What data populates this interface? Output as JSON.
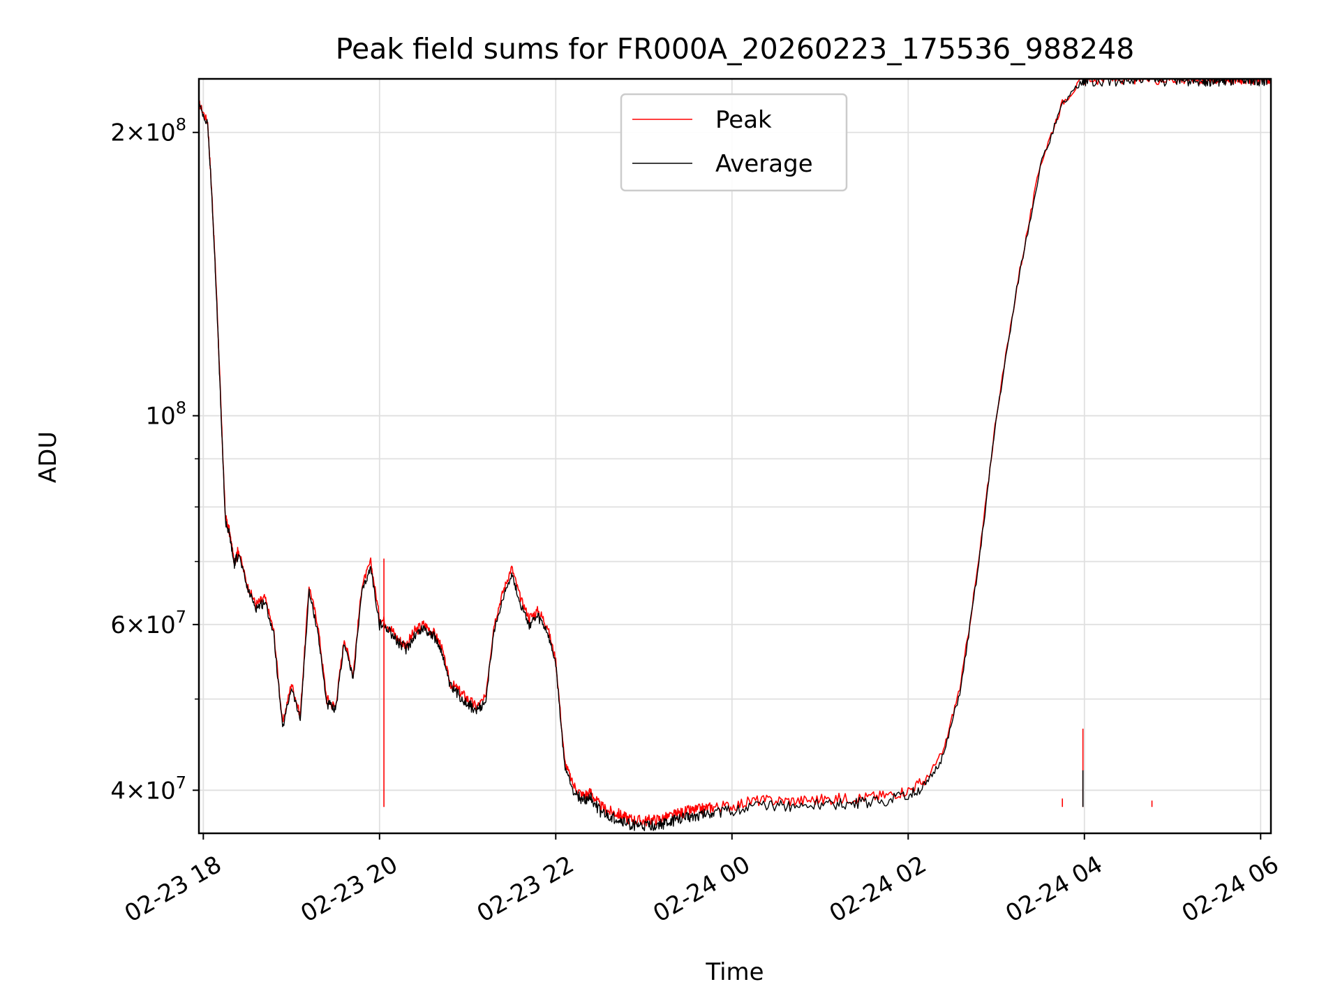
{
  "chart_data": {
    "type": "line",
    "title": "Peak field sums for FR000A_20260223_175536_988248",
    "xlabel": "Time",
    "ylabel": "ADU",
    "yscale": "log",
    "xlim": [
      "2026-02-23 17:57",
      "2026-02-24 06:07"
    ],
    "ylim": [
      36000000,
      228000000
    ],
    "x_ticks": [
      {
        "value": "2026-02-23 18:00",
        "label": "02-23 18"
      },
      {
        "value": "2026-02-23 20:00",
        "label": "02-23 20"
      },
      {
        "value": "2026-02-23 22:00",
        "label": "02-23 22"
      },
      {
        "value": "2026-02-24 00:00",
        "label": "02-24 00"
      },
      {
        "value": "2026-02-24 02:00",
        "label": "02-24 02"
      },
      {
        "value": "2026-02-24 04:00",
        "label": "02-24 04"
      },
      {
        "value": "2026-02-24 06:00",
        "label": "02-24 06"
      }
    ],
    "y_ticks": [
      {
        "value": 40000000,
        "label_mantissa": "4",
        "label_exp": "7"
      },
      {
        "value": 60000000,
        "label_mantissa": "6",
        "label_exp": "7"
      },
      {
        "value": 100000000,
        "label_mantissa": "",
        "label_exp": "8"
      },
      {
        "value": 200000000,
        "label_mantissa": "2",
        "label_exp": "8"
      }
    ],
    "y_minor_ticks": [
      50000000,
      70000000,
      80000000,
      90000000
    ],
    "grid": true,
    "legend_position": "top-center",
    "series": [
      {
        "name": "Peak",
        "color": "#ff0000",
        "x": [
          "2026-02-23 17:57",
          "2026-02-23 18:03",
          "2026-02-23 18:06",
          "2026-02-23 18:09",
          "2026-02-23 18:12",
          "2026-02-23 18:15",
          "2026-02-23 18:18",
          "2026-02-23 18:21",
          "2026-02-23 18:24",
          "2026-02-23 18:30",
          "2026-02-23 18:36",
          "2026-02-23 18:42",
          "2026-02-23 18:48",
          "2026-02-23 18:54",
          "2026-02-23 19:00",
          "2026-02-23 19:06",
          "2026-02-23 19:12",
          "2026-02-23 19:18",
          "2026-02-23 19:24",
          "2026-02-23 19:30",
          "2026-02-23 19:36",
          "2026-02-23 19:42",
          "2026-02-23 19:48",
          "2026-02-23 19:54",
          "2026-02-23 20:00",
          "2026-02-23 20:06",
          "2026-02-23 20:12",
          "2026-02-23 20:18",
          "2026-02-23 20:24",
          "2026-02-23 20:30",
          "2026-02-23 20:36",
          "2026-02-23 20:42",
          "2026-02-23 20:48",
          "2026-02-23 20:54",
          "2026-02-23 21:00",
          "2026-02-23 21:06",
          "2026-02-23 21:12",
          "2026-02-23 21:18",
          "2026-02-23 21:24",
          "2026-02-23 21:30",
          "2026-02-23 21:36",
          "2026-02-23 21:42",
          "2026-02-23 21:48",
          "2026-02-23 21:54",
          "2026-02-23 22:00",
          "2026-02-23 22:06",
          "2026-02-23 22:12",
          "2026-02-23 22:18",
          "2026-02-23 22:24",
          "2026-02-23 22:30",
          "2026-02-23 22:36",
          "2026-02-23 22:42",
          "2026-02-23 22:48",
          "2026-02-23 22:54",
          "2026-02-23 23:00",
          "2026-02-23 23:06",
          "2026-02-23 23:12",
          "2026-02-23 23:18",
          "2026-02-23 23:24",
          "2026-02-23 23:30",
          "2026-02-23 23:36",
          "2026-02-23 23:42",
          "2026-02-23 23:48",
          "2026-02-24 00:00",
          "2026-02-24 00:15",
          "2026-02-24 00:30",
          "2026-02-24 00:45",
          "2026-02-24 01:00",
          "2026-02-24 01:15",
          "2026-02-24 01:30",
          "2026-02-24 01:45",
          "2026-02-24 02:00",
          "2026-02-24 02:12",
          "2026-02-24 02:24",
          "2026-02-24 02:36",
          "2026-02-24 02:48",
          "2026-02-24 03:00",
          "2026-02-24 03:15",
          "2026-02-24 03:30",
          "2026-02-24 03:45",
          "2026-02-24 03:59",
          "2026-02-24 04:00",
          "2026-02-24 04:01",
          "2026-02-24 04:15",
          "2026-02-24 04:30",
          "2026-02-24 04:45",
          "2026-02-24 05:00",
          "2026-02-24 05:10",
          "2026-02-24 05:20",
          "2026-02-24 05:26",
          "2026-02-24 05:32",
          "2026-02-24 05:38",
          "2026-02-24 05:44",
          "2026-02-24 05:50",
          "2026-02-24 05:56",
          "2026-02-24 06:02",
          "2026-02-24 06:07"
        ],
        "y": [
          215000000,
          205000000,
          170000000,
          135000000,
          102000000,
          78000000,
          75000000,
          70000000,
          72000000,
          66000000,
          63000000,
          64000000,
          59000000,
          47000000,
          52000000,
          48000000,
          66000000,
          60000000,
          50000000,
          49000000,
          58000000,
          53000000,
          66000000,
          70000000,
          61000000,
          60000000,
          58000000,
          57000000,
          59000000,
          60000000,
          59000000,
          57000000,
          52000000,
          51000000,
          50000000,
          49000000,
          50000000,
          60000000,
          65000000,
          69000000,
          64000000,
          61000000,
          62000000,
          60000000,
          55000000,
          43000000,
          40500000,
          39500000,
          39800000,
          38500000,
          38000000,
          37800000,
          37400000,
          37200000,
          37100000,
          37200000,
          37300000,
          37500000,
          37800000,
          38000000,
          38100000,
          38300000,
          38400000,
          38500000,
          39000000,
          39000000,
          39000000,
          39100000,
          39200000,
          39300000,
          39500000,
          40000000,
          41000000,
          44000000,
          52000000,
          70000000,
          100000000,
          140000000,
          185000000,
          215000000,
          228000000,
          228000000,
          228000000,
          228000000,
          228000000,
          228000000,
          228000000,
          228000000,
          228000000,
          228000000,
          228000000,
          228000000,
          228000000,
          228000000,
          228000000,
          228000000,
          228000000
        ]
      },
      {
        "name": "Average",
        "color": "#000000",
        "x": [
          "2026-02-23 17:57",
          "2026-02-23 18:03",
          "2026-02-23 18:06",
          "2026-02-23 18:09",
          "2026-02-23 18:12",
          "2026-02-23 18:15",
          "2026-02-23 18:18",
          "2026-02-23 18:21",
          "2026-02-23 18:24",
          "2026-02-23 18:30",
          "2026-02-23 18:36",
          "2026-02-23 18:42",
          "2026-02-23 18:48",
          "2026-02-23 18:54",
          "2026-02-23 19:00",
          "2026-02-23 19:06",
          "2026-02-23 19:12",
          "2026-02-23 19:18",
          "2026-02-23 19:24",
          "2026-02-23 19:30",
          "2026-02-23 19:36",
          "2026-02-23 19:42",
          "2026-02-23 19:48",
          "2026-02-23 19:54",
          "2026-02-23 20:00",
          "2026-02-23 20:06",
          "2026-02-23 20:12",
          "2026-02-23 20:18",
          "2026-02-23 20:24",
          "2026-02-23 20:30",
          "2026-02-23 20:36",
          "2026-02-23 20:42",
          "2026-02-23 20:48",
          "2026-02-23 20:54",
          "2026-02-23 21:00",
          "2026-02-23 21:06",
          "2026-02-23 21:12",
          "2026-02-23 21:18",
          "2026-02-23 21:24",
          "2026-02-23 21:30",
          "2026-02-23 21:36",
          "2026-02-23 21:42",
          "2026-02-23 21:48",
          "2026-02-23 21:54",
          "2026-02-23 22:00",
          "2026-02-23 22:06",
          "2026-02-23 22:12",
          "2026-02-23 22:18",
          "2026-02-23 22:24",
          "2026-02-23 22:30",
          "2026-02-23 22:36",
          "2026-02-23 22:42",
          "2026-02-23 22:48",
          "2026-02-23 22:54",
          "2026-02-23 23:00",
          "2026-02-23 23:06",
          "2026-02-23 23:12",
          "2026-02-23 23:18",
          "2026-02-23 23:24",
          "2026-02-23 23:30",
          "2026-02-23 23:36",
          "2026-02-23 23:42",
          "2026-02-23 23:48",
          "2026-02-24 00:00",
          "2026-02-24 00:15",
          "2026-02-24 00:30",
          "2026-02-24 00:45",
          "2026-02-24 01:00",
          "2026-02-24 01:15",
          "2026-02-24 01:30",
          "2026-02-24 01:45",
          "2026-02-24 02:00",
          "2026-02-24 02:12",
          "2026-02-24 02:24",
          "2026-02-24 02:36",
          "2026-02-24 02:48",
          "2026-02-24 03:00",
          "2026-02-24 03:15",
          "2026-02-24 03:30",
          "2026-02-24 03:45",
          "2026-02-24 03:59",
          "2026-02-24 04:00",
          "2026-02-24 04:01",
          "2026-02-24 04:15",
          "2026-02-24 04:30",
          "2026-02-24 04:45",
          "2026-02-24 05:00",
          "2026-02-24 05:10",
          "2026-02-24 05:20",
          "2026-02-24 05:26",
          "2026-02-24 05:32",
          "2026-02-24 05:38",
          "2026-02-24 05:44",
          "2026-02-24 05:50",
          "2026-02-24 05:56",
          "2026-02-24 06:02",
          "2026-02-24 06:07"
        ],
        "y": [
          214000000,
          204000000,
          169000000,
          134000000,
          101000000,
          77500000,
          74500000,
          69500000,
          71500000,
          65500000,
          62500000,
          63500000,
          58500000,
          46500000,
          51500000,
          47500000,
          65000000,
          59000000,
          49500000,
          48500000,
          57500000,
          52500000,
          65000000,
          69000000,
          60000000,
          59500000,
          57500000,
          56500000,
          58500000,
          59500000,
          58500000,
          56500000,
          51500000,
          50500000,
          49500000,
          48500000,
          49500000,
          59000000,
          64000000,
          68000000,
          63000000,
          60000000,
          61000000,
          59000000,
          54500000,
          42500000,
          40000000,
          39000000,
          39300000,
          38000000,
          37500000,
          37300000,
          36900000,
          36700000,
          36600000,
          36700000,
          36800000,
          37000000,
          37300000,
          37500000,
          37600000,
          37800000,
          37900000,
          38000000,
          38500000,
          38500000,
          38500000,
          38600000,
          38700000,
          38800000,
          39000000,
          39500000,
          40500000,
          43500000,
          51500000,
          69500000,
          99500000,
          139500000,
          184000000,
          214000000,
          227000000,
          227000000,
          227000000,
          227000000,
          227000000,
          227000000,
          227000000,
          227000000,
          227000000,
          227000000,
          227000000,
          227000000,
          227000000,
          227000000,
          227000000,
          227000000,
          227000000
        ]
      }
    ]
  }
}
